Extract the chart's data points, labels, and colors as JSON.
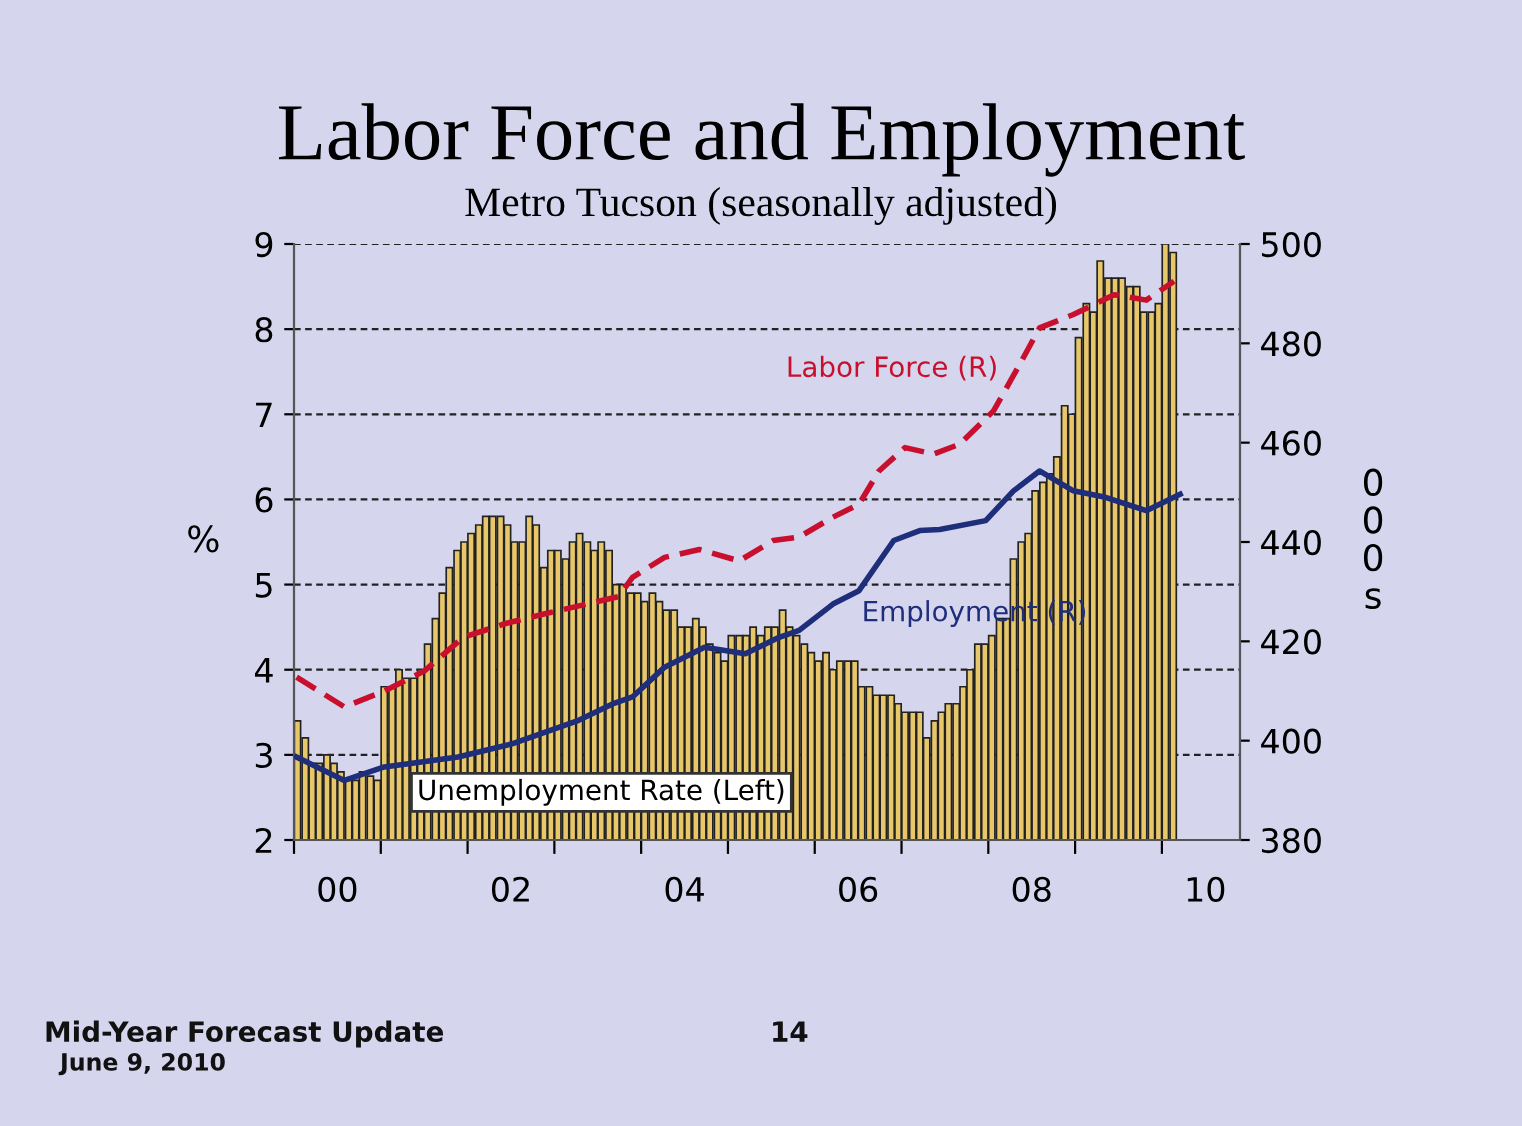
{
  "chart_data": {
    "type": "bar",
    "title": "Labor Force and Employment",
    "subtitle": "Metro Tucson (seasonally adjusted)",
    "ylabel": "%",
    "y2label": "000s",
    "annotations": [
      "Mid-Year Forecast Update",
      "June 9, 2010",
      "14"
    ],
    "xlim": [
      -0.5,
      10.4
    ],
    "xticks": [
      {
        "value": -0.5,
        "label": null
      },
      {
        "value": 0,
        "label": "00"
      },
      {
        "value": 0.5,
        "label": null
      },
      {
        "value": 1.5,
        "label": null
      },
      {
        "value": 2,
        "label": "02"
      },
      {
        "value": 2.5,
        "label": null
      },
      {
        "value": 3.5,
        "label": null
      },
      {
        "value": 4,
        "label": "04"
      },
      {
        "value": 4.5,
        "label": null
      },
      {
        "value": 5.5,
        "label": null
      },
      {
        "value": 6,
        "label": "06"
      },
      {
        "value": 6.5,
        "label": null
      },
      {
        "value": 7.5,
        "label": null
      },
      {
        "value": 8,
        "label": "08"
      },
      {
        "value": 8.5,
        "label": null
      },
      {
        "value": 9.5,
        "label": null
      },
      {
        "value": 10,
        "label": "10"
      }
    ],
    "ylim": [
      2,
      9
    ],
    "yticks": [
      2,
      3,
      4,
      5,
      6,
      7,
      8,
      9
    ],
    "y2lim": [
      380,
      500
    ],
    "y2ticks": [
      380,
      400,
      420,
      440,
      460,
      480,
      500
    ],
    "grid": "y",
    "legend": false,
    "series": [
      {
        "name": "Unemployment Rate (Left)",
        "color": "#e8c66a",
        "x": [
          -0.46,
          -0.37,
          -0.29,
          -0.21,
          -0.12,
          -0.04,
          0.04,
          0.13,
          0.21,
          0.29,
          0.38,
          0.46,
          0.54,
          0.63,
          0.71,
          0.79,
          0.88,
          0.96,
          1.04,
          1.13,
          1.21,
          1.29,
          1.38,
          1.46,
          1.54,
          1.63,
          1.71,
          1.79,
          1.88,
          1.96,
          2.04,
          2.13,
          2.21,
          2.29,
          2.38,
          2.46,
          2.54,
          2.63,
          2.71,
          2.79,
          2.88,
          2.96,
          3.04,
          3.13,
          3.21,
          3.29,
          3.38,
          3.46,
          3.54,
          3.63,
          3.71,
          3.79,
          3.88,
          3.96,
          4.04,
          4.13,
          4.21,
          4.29,
          4.38,
          4.46,
          4.54,
          4.63,
          4.71,
          4.79,
          4.88,
          4.96,
          5.04,
          5.13,
          5.21,
          5.29,
          5.38,
          5.46,
          5.54,
          5.63,
          5.71,
          5.79,
          5.88,
          5.96,
          6.04,
          6.13,
          6.21,
          6.29,
          6.38,
          6.46,
          6.54,
          6.63,
          6.71,
          6.79,
          6.88,
          6.96,
          7.04,
          7.13,
          7.21,
          7.29,
          7.38,
          7.46,
          7.54,
          7.63,
          7.71,
          7.79,
          7.88,
          7.96,
          8.04,
          8.13,
          8.21,
          8.29,
          8.38,
          8.46,
          8.54,
          8.63,
          8.71,
          8.79,
          8.88,
          8.96,
          9.04,
          9.13,
          9.21,
          9.29,
          9.38,
          9.46,
          9.54,
          9.63
        ],
        "values": [
          3.4,
          3.2,
          2.9,
          2.9,
          3.0,
          2.9,
          2.8,
          2.7,
          2.7,
          2.8,
          2.75,
          2.7,
          3.8,
          3.8,
          4.0,
          3.9,
          3.9,
          4.0,
          4.3,
          4.6,
          4.9,
          5.2,
          5.4,
          5.5,
          5.6,
          5.7,
          5.8,
          5.8,
          5.8,
          5.7,
          5.5,
          5.5,
          5.8,
          5.7,
          5.2,
          5.4,
          5.4,
          5.3,
          5.5,
          5.6,
          5.5,
          5.4,
          5.5,
          5.4,
          5.0,
          5.0,
          4.9,
          4.9,
          4.8,
          4.9,
          4.8,
          4.7,
          4.7,
          4.5,
          4.5,
          4.6,
          4.5,
          4.3,
          4.2,
          4.1,
          4.4,
          4.4,
          4.4,
          4.5,
          4.4,
          4.5,
          4.5,
          4.7,
          4.5,
          4.4,
          4.3,
          4.2,
          4.1,
          4.2,
          4.0,
          4.1,
          4.1,
          4.1,
          3.8,
          3.8,
          3.7,
          3.7,
          3.7,
          3.6,
          3.5,
          3.5,
          3.5,
          3.2,
          3.4,
          3.5,
          3.6,
          3.6,
          3.8,
          4.0,
          4.3,
          4.3,
          4.4,
          4.6,
          4.6,
          5.3,
          5.5,
          5.6,
          6.1,
          6.2,
          6.3,
          6.5,
          7.1,
          7.0,
          7.9,
          8.3,
          8.2,
          8.8,
          8.6,
          8.6,
          8.6,
          8.5,
          8.5,
          8.2,
          8.2,
          8.3,
          9.0,
          8.9
        ]
      },
      {
        "name": "Labor Force (R)",
        "type": "line",
        "axis": "y2",
        "color": "#c8102e",
        "line_style": "dashed",
        "x": [
          -0.47,
          0.08,
          0.54,
          1.0,
          1.45,
          1.92,
          2.38,
          3.24,
          3.4,
          3.77,
          4.17,
          4.63,
          5.02,
          5.32,
          5.71,
          6.01,
          6.24,
          6.54,
          6.87,
          7.17,
          7.56,
          7.86,
          8.09,
          8.48,
          8.95,
          9.32,
          9.64
        ],
        "values": [
          412.8,
          406.8,
          410.0,
          414.0,
          420.8,
          423.5,
          425.5,
          429.0,
          432.9,
          436.9,
          438.5,
          436.2,
          440.3,
          441.0,
          445.0,
          447.6,
          454.3,
          459.0,
          457.7,
          459.7,
          466.4,
          475.7,
          483.1,
          485.8,
          489.8,
          488.7,
          492.5
        ]
      },
      {
        "name": "Employment (R)",
        "type": "line",
        "axis": "y2",
        "color": "#1f2e7a",
        "line_style": "solid",
        "x": [
          -0.47,
          0.08,
          0.54,
          1.39,
          2.02,
          2.78,
          3.17,
          3.4,
          3.77,
          4.23,
          4.7,
          5.09,
          5.32,
          5.71,
          6.01,
          6.41,
          6.71,
          6.94,
          7.47,
          7.79,
          8.09,
          8.48,
          8.85,
          9.32,
          9.71
        ],
        "values": [
          396.7,
          392.0,
          394.7,
          396.7,
          399.4,
          404.1,
          407.4,
          408.8,
          414.8,
          418.8,
          417.5,
          420.8,
          422.2,
          427.5,
          430.2,
          440.3,
          442.3,
          442.5,
          444.3,
          450.3,
          454.3,
          450.3,
          449.0,
          446.3,
          449.6
        ]
      }
    ]
  }
}
